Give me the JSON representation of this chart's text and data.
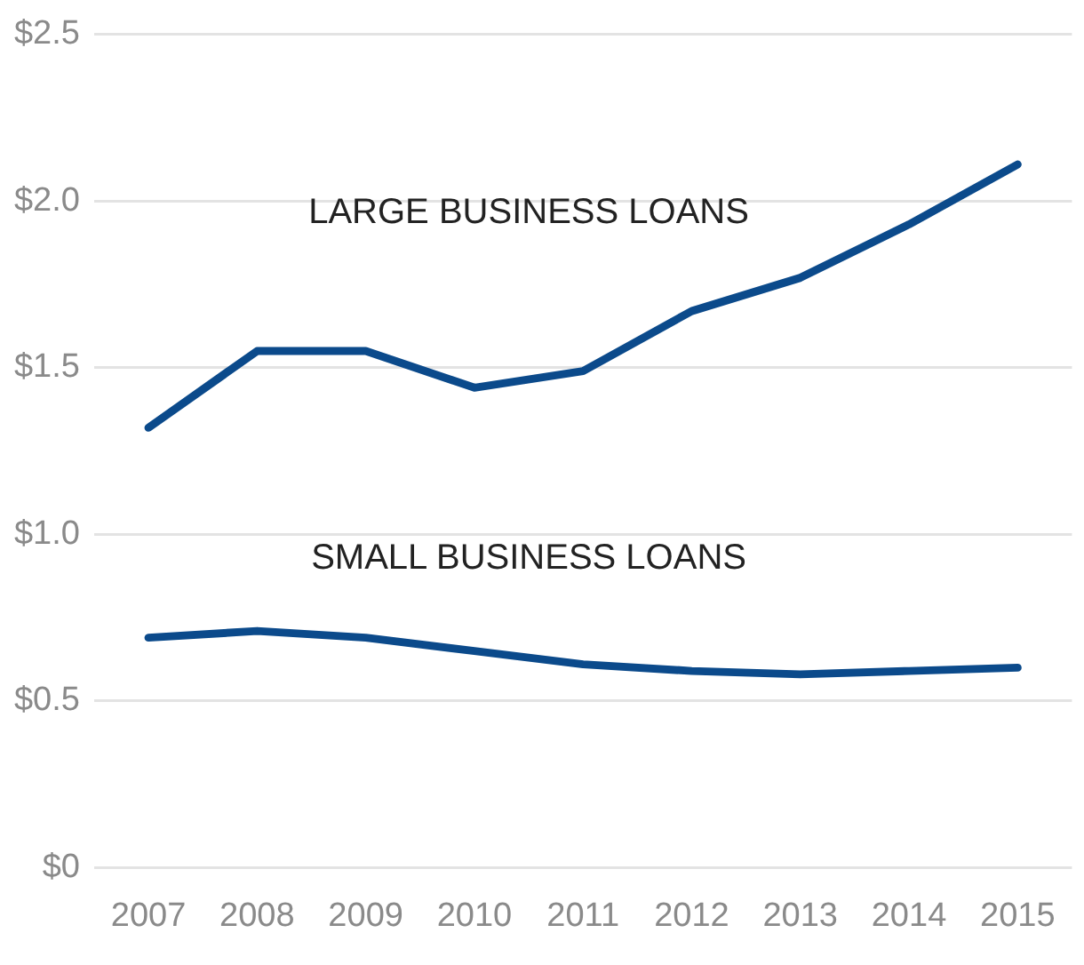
{
  "chart_data": {
    "type": "line",
    "categories": [
      "2007",
      "2008",
      "2009",
      "2010",
      "2011",
      "2012",
      "2013",
      "2014",
      "2015"
    ],
    "series": [
      {
        "name": "LARGE BUSINESS LOANS",
        "color": "#0b4a8b",
        "values": [
          1.32,
          1.55,
          1.55,
          1.44,
          1.49,
          1.67,
          1.77,
          1.93,
          2.11
        ]
      },
      {
        "name": "SMALL BUSINESS LOANS",
        "color": "#0b4a8b",
        "values": [
          0.69,
          0.71,
          0.69,
          0.65,
          0.61,
          0.59,
          0.58,
          0.59,
          0.6
        ]
      }
    ],
    "ylim": [
      0,
      2.5
    ],
    "yticks": [
      {
        "value": 0,
        "label": "$0"
      },
      {
        "value": 0.5,
        "label": "$0.5"
      },
      {
        "value": 1,
        "label": "$1.0"
      },
      {
        "value": 1.5,
        "label": "$1.5"
      },
      {
        "value": 2,
        "label": "$2.0"
      },
      {
        "value": 2.5,
        "label": "$2.5"
      }
    ],
    "grid": "y",
    "legend": false,
    "marker": "none",
    "line_style": "solid"
  }
}
